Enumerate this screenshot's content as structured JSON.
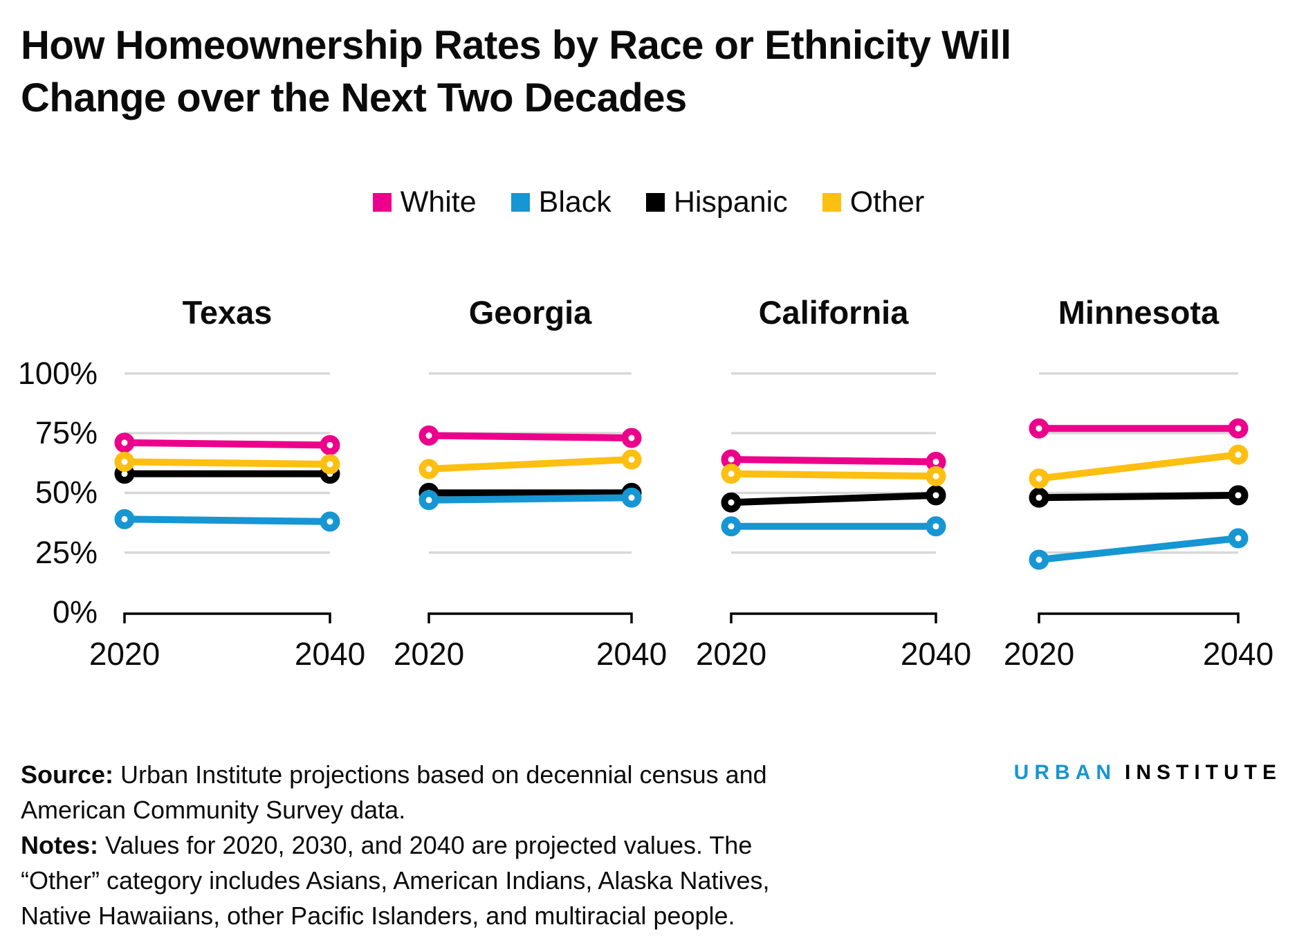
{
  "header": {
    "title_lines": [
      "How Homeownership Rates by Race or Ethnicity Will",
      "Change over the Next Two Decades"
    ]
  },
  "legend": [
    {
      "label": "White",
      "color": "#ec008b"
    },
    {
      "label": "Black",
      "color": "#1696d2"
    },
    {
      "label": "Hispanic",
      "color": "#000000"
    },
    {
      "label": "Other",
      "color": "#fdbf11"
    }
  ],
  "colors": {
    "White": "#ec008b",
    "Black": "#1696d2",
    "Hispanic": "#000000",
    "Other": "#fdbf11",
    "grid": "#d8d7d7",
    "axis": "#000000"
  },
  "chart_data": {
    "type": "line",
    "title": "How Homeownership Rates by Race or Ethnicity Will Change over the Next Two Decades",
    "x": [
      2020,
      2040
    ],
    "x_tick_labels": [
      "2020",
      "2040"
    ],
    "y_axis": {
      "ticks": [
        "0%",
        "25%",
        "50%",
        "75%",
        "100%"
      ],
      "tick_values": [
        0,
        25,
        50,
        75,
        100
      ],
      "range": [
        0,
        100
      ],
      "grid": true,
      "unit": "%"
    },
    "legend_position": "top-center",
    "panels": [
      {
        "state": "Texas",
        "series": [
          {
            "name": "White",
            "values": [
              71,
              70
            ]
          },
          {
            "name": "Black",
            "values": [
              39,
              38
            ]
          },
          {
            "name": "Hispanic",
            "values": [
              58,
              58
            ]
          },
          {
            "name": "Other",
            "values": [
              63,
              62
            ]
          }
        ]
      },
      {
        "state": "Georgia",
        "series": [
          {
            "name": "White",
            "values": [
              74,
              73
            ]
          },
          {
            "name": "Black",
            "values": [
              47,
              48
            ]
          },
          {
            "name": "Hispanic",
            "values": [
              50,
              50
            ]
          },
          {
            "name": "Other",
            "values": [
              60,
              64
            ]
          }
        ]
      },
      {
        "state": "California",
        "series": [
          {
            "name": "White",
            "values": [
              64,
              63
            ]
          },
          {
            "name": "Black",
            "values": [
              36,
              36
            ]
          },
          {
            "name": "Hispanic",
            "values": [
              46,
              49
            ]
          },
          {
            "name": "Other",
            "values": [
              58,
              57
            ]
          }
        ]
      },
      {
        "state": "Minnesota",
        "series": [
          {
            "name": "White",
            "values": [
              77,
              77
            ]
          },
          {
            "name": "Black",
            "values": [
              22,
              31
            ]
          },
          {
            "name": "Hispanic",
            "values": [
              48,
              49
            ]
          },
          {
            "name": "Other",
            "values": [
              56,
              66
            ]
          }
        ]
      }
    ]
  },
  "footer": {
    "lines": [
      {
        "bold": "Source:",
        "rest": " Urban Institute projections based on decennial census and"
      },
      {
        "bold": "",
        "rest": "American Community Survey data."
      },
      {
        "bold": "Notes:",
        "rest": " Values for 2020, 2030, and 2040 are projected values. The"
      },
      {
        "bold": "",
        "rest": "“Other” category includes Asians, American Indians, Alaska Natives,"
      },
      {
        "bold": "",
        "rest": "Native Hawaiians, other Pacific Islanders, and multiracial people."
      }
    ],
    "logo": {
      "urban": "URBAN",
      "institute": "INSTITUTE"
    }
  }
}
